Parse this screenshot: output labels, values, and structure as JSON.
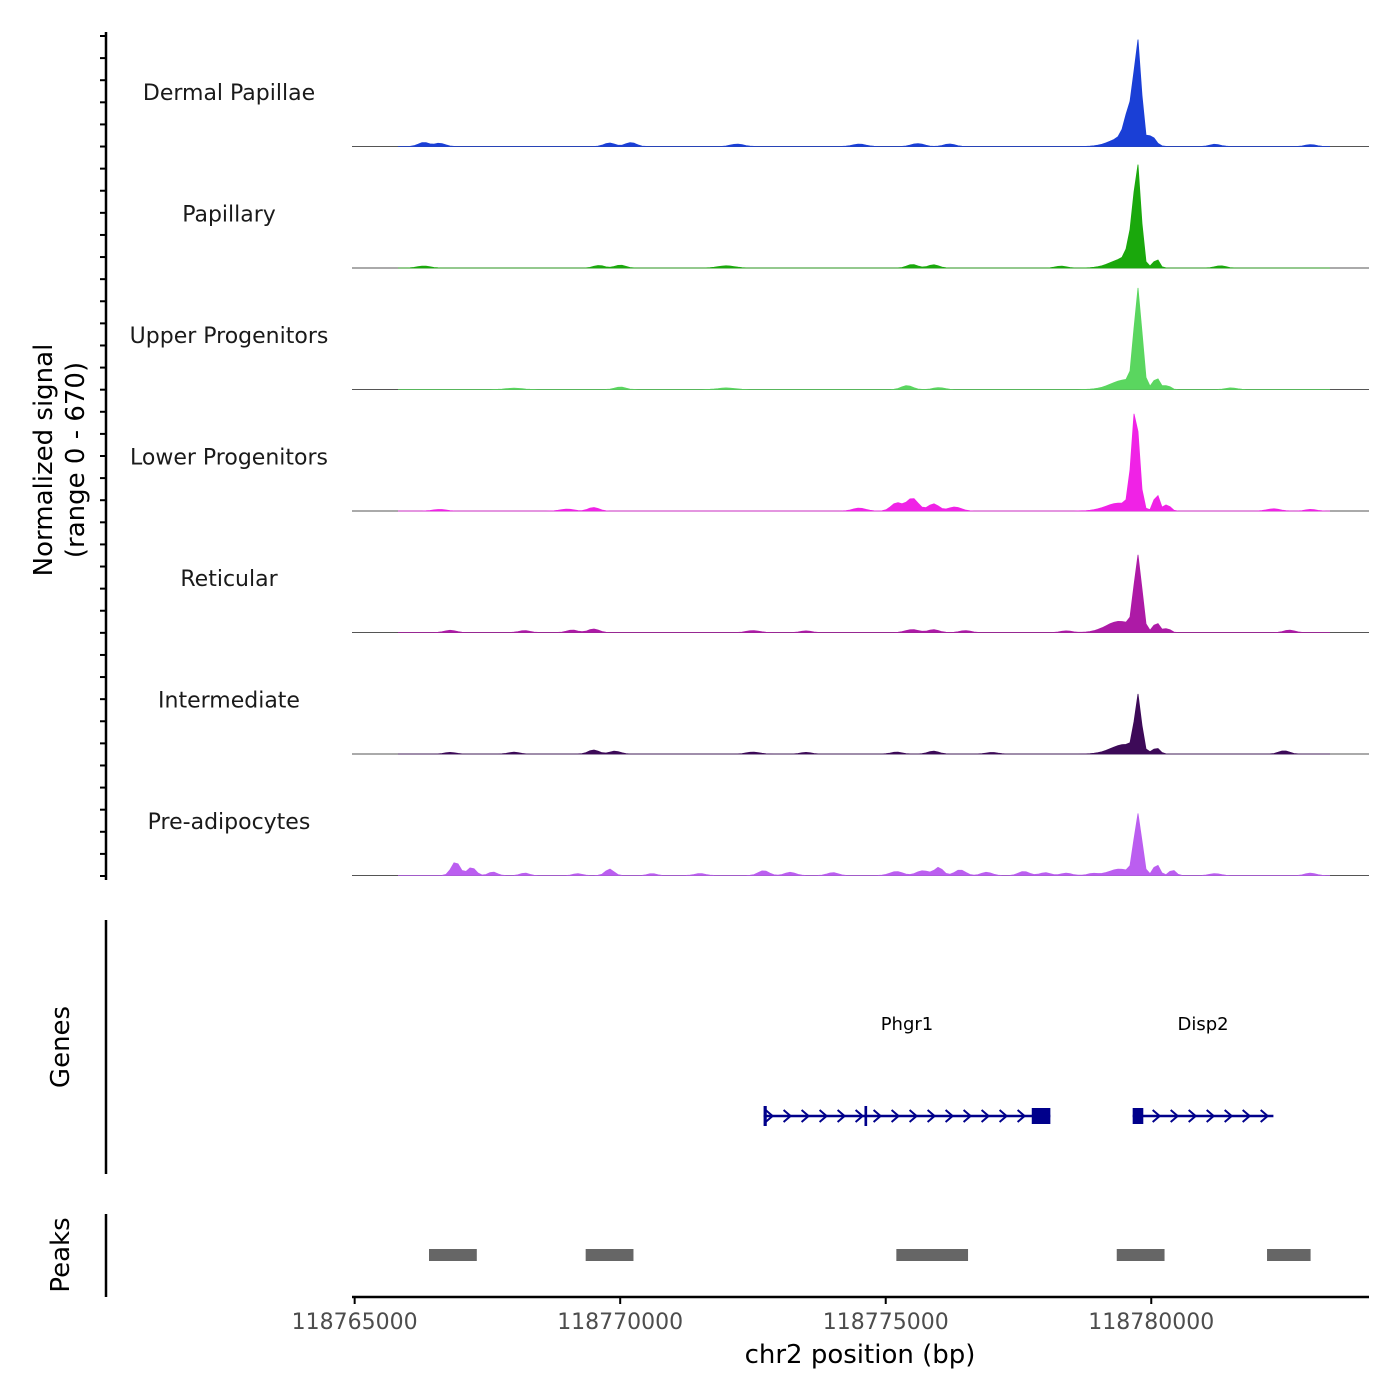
{
  "chart_data": {
    "type": "area",
    "title": "",
    "ylabel_line1": "Normalized signal",
    "ylabel_line2": "(range 0 - 670)",
    "xlabel": "chr2 position (bp)",
    "xlim": [
      118764950,
      118784100
    ],
    "ylim": [
      0,
      670
    ],
    "x_ticks": [
      118765000,
      118770000,
      118775000,
      118780000
    ],
    "x_tick_labels": [
      "118765000",
      "118770000",
      "118775000",
      "118780000"
    ],
    "tracks": [
      {
        "name": "Dermal Papillae",
        "color": "#1a3fd6",
        "peaks": [
          [
            118779750,
            620,
            60
          ],
          [
            118779500,
            60,
            250
          ],
          [
            118779600,
            200,
            90
          ],
          [
            118780000,
            60,
            80
          ],
          [
            118766300,
            25,
            100
          ],
          [
            118766600,
            20,
            100
          ],
          [
            118769800,
            22,
            100
          ],
          [
            118770200,
            25,
            100
          ],
          [
            118775600,
            18,
            120
          ],
          [
            118776200,
            16,
            100
          ],
          [
            118774500,
            15,
            120
          ],
          [
            118772200,
            15,
            120
          ],
          [
            118781200,
            14,
            100
          ],
          [
            118783000,
            12,
            100
          ]
        ]
      },
      {
        "name": "Papillary",
        "color": "#1aa80c",
        "peaks": [
          [
            118779750,
            520,
            60
          ],
          [
            118779500,
            60,
            250
          ],
          [
            118779650,
            200,
            80
          ],
          [
            118780100,
            55,
            50
          ],
          [
            118775500,
            22,
            100
          ],
          [
            118775900,
            20,
            100
          ],
          [
            118770000,
            18,
            100
          ],
          [
            118769600,
            16,
            100
          ],
          [
            118772000,
            14,
            150
          ],
          [
            118781300,
            14,
            100
          ],
          [
            118766300,
            12,
            120
          ],
          [
            118778300,
            12,
            100
          ]
        ]
      },
      {
        "name": "Upper Progenitors",
        "color": "#5ad65f",
        "peaks": [
          [
            118779750,
            600,
            70
          ],
          [
            118779500,
            60,
            250
          ],
          [
            118780100,
            70,
            60
          ],
          [
            118780300,
            25,
            60
          ],
          [
            118775400,
            25,
            100
          ],
          [
            118776000,
            12,
            100
          ],
          [
            118770000,
            15,
            100
          ],
          [
            118772000,
            10,
            150
          ],
          [
            118781500,
            10,
            100
          ],
          [
            118768000,
            8,
            150
          ]
        ]
      },
      {
        "name": "Lower Progenitors",
        "color": "#f022e6",
        "peaks": [
          [
            118779700,
            620,
            70
          ],
          [
            118779400,
            50,
            250
          ],
          [
            118780100,
            110,
            50
          ],
          [
            118780300,
            40,
            60
          ],
          [
            118775500,
            80,
            110
          ],
          [
            118775200,
            50,
            100
          ],
          [
            118775900,
            45,
            100
          ],
          [
            118776300,
            25,
            120
          ],
          [
            118774500,
            18,
            120
          ],
          [
            118769500,
            22,
            100
          ],
          [
            118769000,
            12,
            120
          ],
          [
            118766600,
            10,
            120
          ],
          [
            118782300,
            14,
            120
          ],
          [
            118783000,
            10,
            100
          ]
        ]
      },
      {
        "name": "Reticular",
        "color": "#ad1aa6",
        "peaks": [
          [
            118779750,
            460,
            70
          ],
          [
            118779400,
            70,
            250
          ],
          [
            118780100,
            60,
            60
          ],
          [
            118780300,
            25,
            60
          ],
          [
            118769500,
            22,
            100
          ],
          [
            118769100,
            15,
            100
          ],
          [
            118768200,
            12,
            100
          ],
          [
            118766800,
            14,
            100
          ],
          [
            118775500,
            18,
            120
          ],
          [
            118775900,
            18,
            100
          ],
          [
            118776500,
            12,
            100
          ],
          [
            118772500,
            12,
            120
          ],
          [
            118773500,
            10,
            100
          ],
          [
            118782600,
            15,
            100
          ],
          [
            118778400,
            10,
            100
          ]
        ]
      },
      {
        "name": "Intermediate",
        "color": "#3d0a58",
        "peaks": [
          [
            118779750,
            340,
            60
          ],
          [
            118779500,
            60,
            250
          ],
          [
            118780100,
            35,
            60
          ],
          [
            118769500,
            25,
            100
          ],
          [
            118769900,
            18,
            100
          ],
          [
            118768000,
            12,
            100
          ],
          [
            118766800,
            10,
            100
          ],
          [
            118775900,
            18,
            100
          ],
          [
            118775200,
            12,
            100
          ],
          [
            118772500,
            12,
            120
          ],
          [
            118773500,
            10,
            100
          ],
          [
            118782500,
            20,
            100
          ],
          [
            118777000,
            10,
            100
          ]
        ]
      },
      {
        "name": "Pre-adipocytes",
        "color": "#bb5ef0",
        "peaks": [
          [
            118779750,
            380,
            70
          ],
          [
            118779400,
            40,
            200
          ],
          [
            118780100,
            70,
            60
          ],
          [
            118780400,
            35,
            60
          ],
          [
            118766900,
            85,
            80
          ],
          [
            118767200,
            50,
            80
          ],
          [
            118767600,
            22,
            80
          ],
          [
            118768200,
            15,
            80
          ],
          [
            118769800,
            40,
            80
          ],
          [
            118769200,
            12,
            80
          ],
          [
            118770600,
            12,
            80
          ],
          [
            118771500,
            12,
            100
          ],
          [
            118772700,
            30,
            100
          ],
          [
            118773200,
            20,
            100
          ],
          [
            118774000,
            18,
            100
          ],
          [
            118775200,
            25,
            120
          ],
          [
            118775700,
            30,
            120
          ],
          [
            118776000,
            50,
            80
          ],
          [
            118776400,
            35,
            100
          ],
          [
            118776900,
            20,
            100
          ],
          [
            118777600,
            25,
            100
          ],
          [
            118778000,
            18,
            100
          ],
          [
            118778400,
            15,
            100
          ],
          [
            118778900,
            12,
            100
          ],
          [
            118781200,
            12,
            100
          ],
          [
            118783000,
            15,
            100
          ]
        ]
      }
    ],
    "genes_label": "Genes",
    "genes": [
      {
        "name": "Phgr1",
        "start": 118772700,
        "end": 118778100,
        "strand": "+",
        "exons": [
          [
            118772700,
            118772760
          ],
          [
            118774600,
            118774650
          ],
          [
            118777750,
            118778100
          ]
        ]
      },
      {
        "name": "Disp2",
        "start": 118779650,
        "end": 118782300,
        "strand": "+",
        "exons": [
          [
            118779650,
            118779850
          ]
        ]
      }
    ],
    "peaks_label": "Peaks",
    "peak_regions": [
      [
        118766400,
        118767300
      ],
      [
        118769350,
        118770250
      ],
      [
        118775200,
        118776550
      ],
      [
        118779350,
        118780250
      ],
      [
        118782180,
        118783000
      ]
    ]
  }
}
